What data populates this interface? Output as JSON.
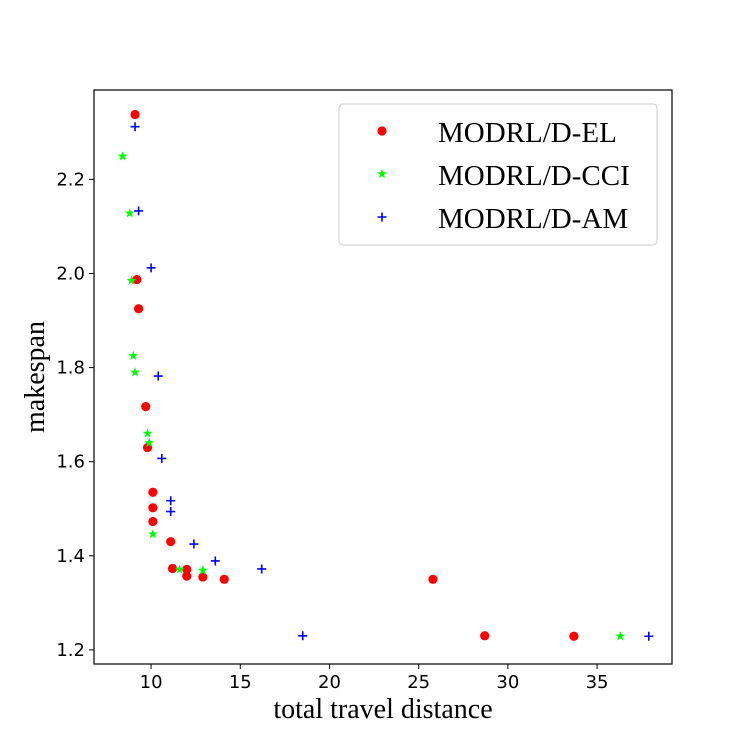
{
  "chart_data": {
    "type": "scatter",
    "xlabel": "total travel distance",
    "ylabel": "makespan",
    "xlim": [
      6.8,
      39.2
    ],
    "ylim": [
      1.17,
      2.39
    ],
    "xticks": [
      "10",
      "15",
      "20",
      "25",
      "30",
      "35"
    ],
    "yticks": [
      "1.2",
      "1.4",
      "1.6",
      "1.8",
      "2.0",
      "2.2"
    ],
    "grid": false,
    "legend_position": "top-right",
    "series": [
      {
        "name": "MODRL/D-EL",
        "marker": "circle",
        "color": "#ff0000",
        "points": [
          [
            9.1,
            2.338
          ],
          [
            9.2,
            1.987
          ],
          [
            9.3,
            1.925
          ],
          [
            9.7,
            1.717
          ],
          [
            9.8,
            1.63
          ],
          [
            10.1,
            1.535
          ],
          [
            10.1,
            1.502
          ],
          [
            10.1,
            1.473
          ],
          [
            11.1,
            1.43
          ],
          [
            11.2,
            1.373
          ],
          [
            12.0,
            1.371
          ],
          [
            12.0,
            1.357
          ],
          [
            12.9,
            1.355
          ],
          [
            14.1,
            1.35
          ],
          [
            25.8,
            1.35
          ],
          [
            28.7,
            1.23
          ],
          [
            33.7,
            1.229
          ]
        ]
      },
      {
        "name": "MODRL/D-CCI",
        "marker": "star",
        "color": "#00ff00",
        "points": [
          [
            8.4,
            2.249
          ],
          [
            8.8,
            2.128
          ],
          [
            8.9,
            1.985
          ],
          [
            9.0,
            1.825
          ],
          [
            9.1,
            1.79
          ],
          [
            9.8,
            1.66
          ],
          [
            9.9,
            1.64
          ],
          [
            10.1,
            1.446
          ],
          [
            11.6,
            1.371
          ],
          [
            12.9,
            1.369
          ],
          [
            36.3,
            1.229
          ]
        ]
      },
      {
        "name": "MODRL/D-AM",
        "marker": "plus",
        "color": "#0000ff",
        "points": [
          [
            9.1,
            2.312
          ],
          [
            9.3,
            2.133
          ],
          [
            10.0,
            2.012
          ],
          [
            10.4,
            1.782
          ],
          [
            10.6,
            1.607
          ],
          [
            11.1,
            1.517
          ],
          [
            11.1,
            1.494
          ],
          [
            12.4,
            1.425
          ],
          [
            13.6,
            1.389
          ],
          [
            16.2,
            1.372
          ],
          [
            18.5,
            1.23
          ],
          [
            37.9,
            1.229
          ]
        ]
      }
    ]
  }
}
